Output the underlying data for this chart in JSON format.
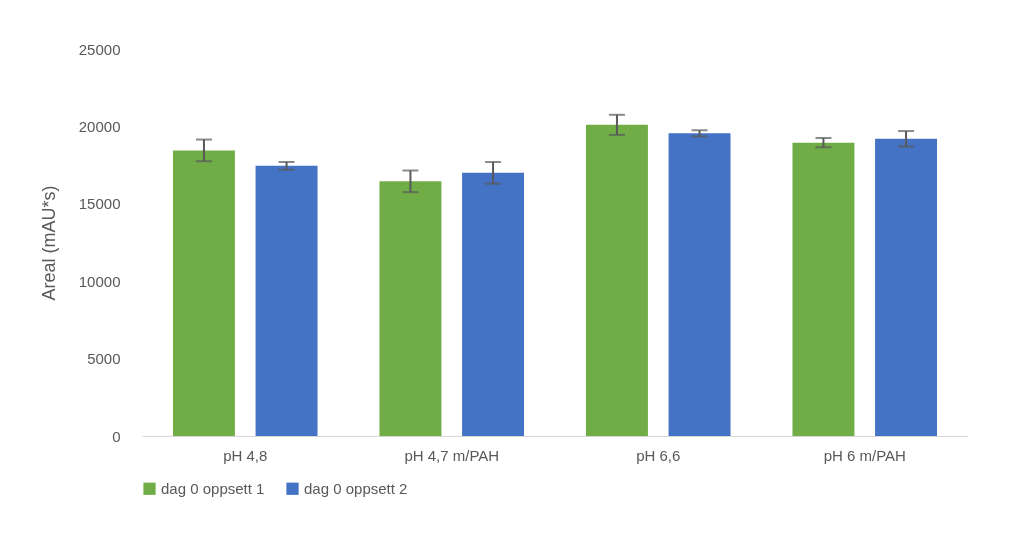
{
  "chart_data": {
    "type": "bar",
    "ylabel": "Areal (mAU*s)",
    "categories": [
      "pH 4,8",
      "pH 4,7 m/PAH",
      "pH 6,6",
      "pH 6 m/PAH"
    ],
    "series": [
      {
        "name": "dag 0 oppsett 1",
        "color": "#70ad47",
        "values": [
          18450,
          16450,
          20100,
          18950
        ],
        "errors": [
          700,
          700,
          650,
          300
        ]
      },
      {
        "name": "dag 0 oppsett 2",
        "color": "#4472c4",
        "values": [
          17450,
          17000,
          19550,
          19200
        ],
        "errors": [
          250,
          700,
          200,
          500
        ]
      }
    ],
    "ylim": [
      0,
      25000
    ],
    "yticks": [
      0,
      5000,
      10000,
      15000,
      20000,
      25000
    ],
    "grid": false,
    "legend": "bottom"
  }
}
